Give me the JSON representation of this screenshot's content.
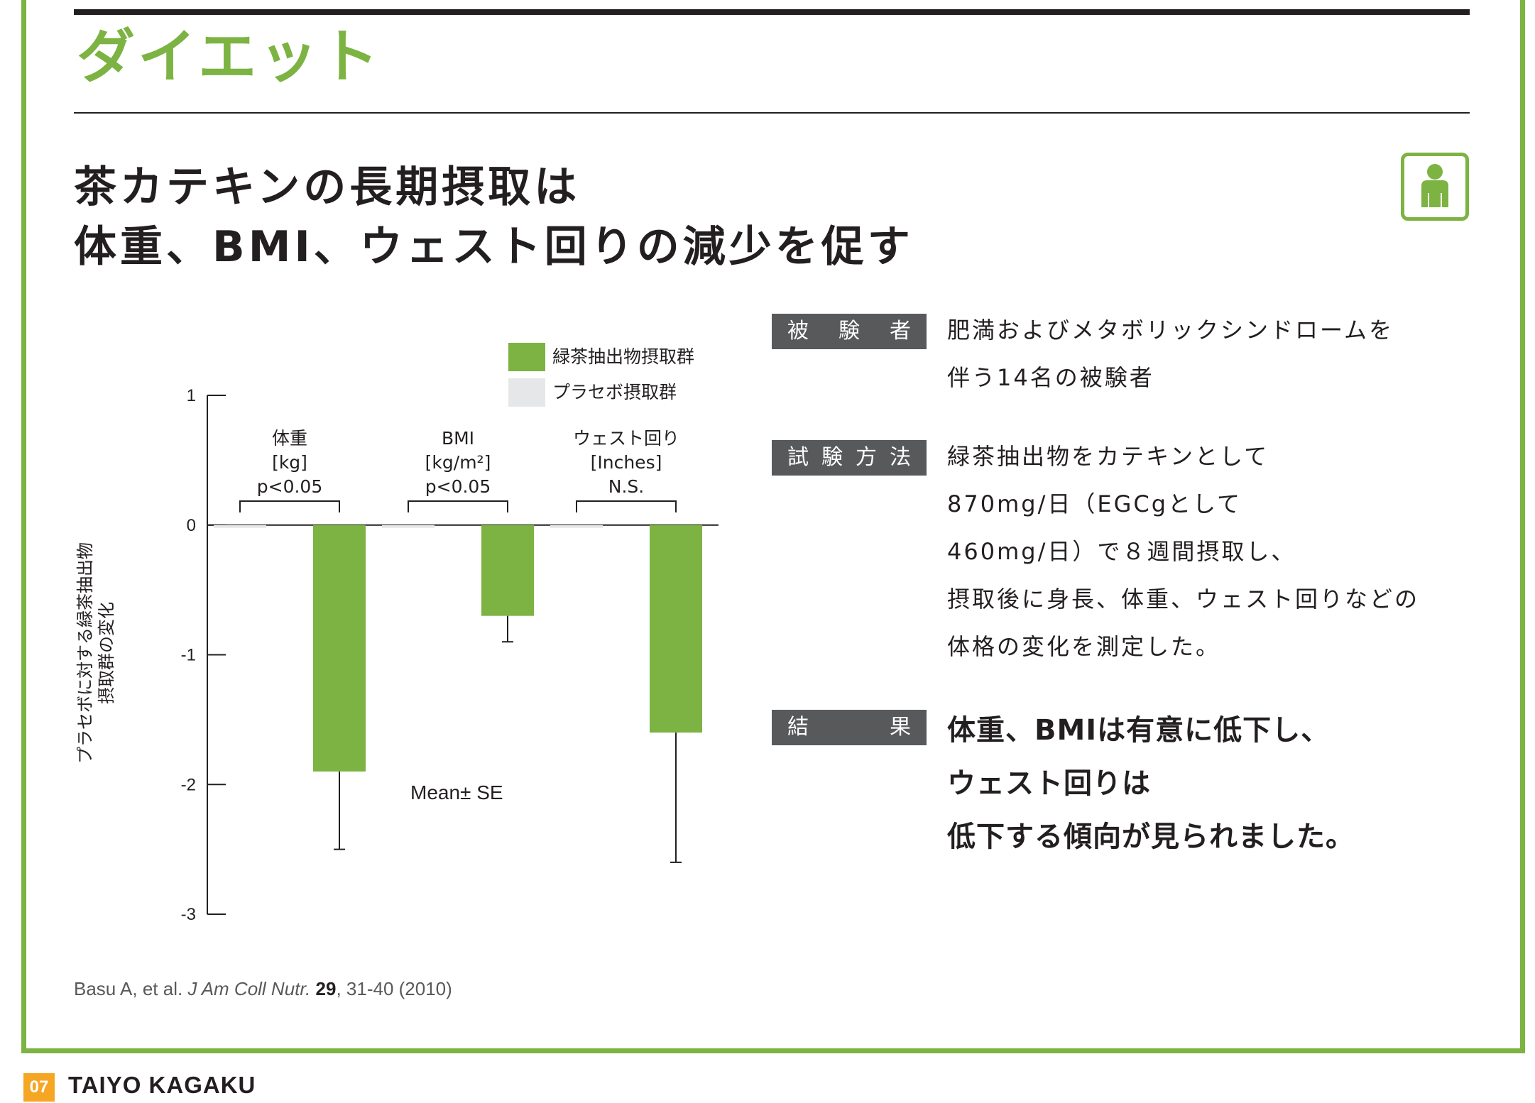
{
  "section": {
    "title": "ダイエット"
  },
  "headline": {
    "line1": "茶カテキンの長期摂取は",
    "line2": "体重、BMI、ウェスト回りの減少を促す"
  },
  "icons": {
    "badge": "person-icon"
  },
  "colors": {
    "accent": "#7cb342",
    "placebo": "#e6e7e8",
    "tag_bg": "#58595b",
    "page_num": "#f5a623"
  },
  "chart_data": {
    "type": "bar",
    "ylabel": "プラセボに対する緑茶抽出物摂取群の変化",
    "ylabel_lines": [
      "プラセボに対する緑茶抽出物",
      "摂取群の変化"
    ],
    "ylim": [
      -3,
      1
    ],
    "yticks": [
      "1",
      "0",
      "-1",
      "-2",
      "-3"
    ],
    "ytick_values": [
      1,
      0,
      -1,
      -2,
      -3
    ],
    "categories": [
      {
        "lines": [
          "体重",
          "[kg]",
          "p<0.05"
        ]
      },
      {
        "lines": [
          "BMI",
          "[kg/m²]",
          "p<0.05"
        ]
      },
      {
        "lines": [
          "ウェスト回り",
          "[Inches]",
          "N.S."
        ]
      }
    ],
    "series": [
      {
        "name": "緑茶抽出物摂取群",
        "values": [
          -1.9,
          -0.7,
          -1.6
        ],
        "error": [
          0.6,
          0.2,
          1.0
        ]
      },
      {
        "name": "プラセボ摂取群",
        "values": [
          0,
          0,
          0
        ]
      }
    ],
    "annotation": "Mean± SE",
    "legend_position": "top-right"
  },
  "info": {
    "subjects": {
      "label_chars": [
        "被",
        "験",
        "者"
      ],
      "lines": [
        "肥満およびメタボリックシンドロームを",
        "伴う14名の被験者"
      ]
    },
    "method": {
      "label_chars": [
        "試",
        "験",
        "方",
        "法"
      ],
      "lines": [
        "緑茶抽出物をカテキンとして",
        "870mg/日（EGCgとして",
        "460mg/日）で８週間摂取し、",
        "摂取後に身長、体重、ウェスト回りなどの",
        "体格の変化を測定した。"
      ]
    },
    "result": {
      "label_chars": [
        "結",
        "果"
      ],
      "lines": [
        "体重、BMIは有意に低下し、",
        "ウェスト回りは",
        "低下する傾向が見られました。"
      ]
    }
  },
  "citation": {
    "authors": "Basu A, et al. ",
    "journal": "J Am Coll Nutr.",
    "volume": "29",
    "pages": ", 31-40 (2010)"
  },
  "footer": {
    "page": "07",
    "brand": "TAIYO KAGAKU"
  }
}
